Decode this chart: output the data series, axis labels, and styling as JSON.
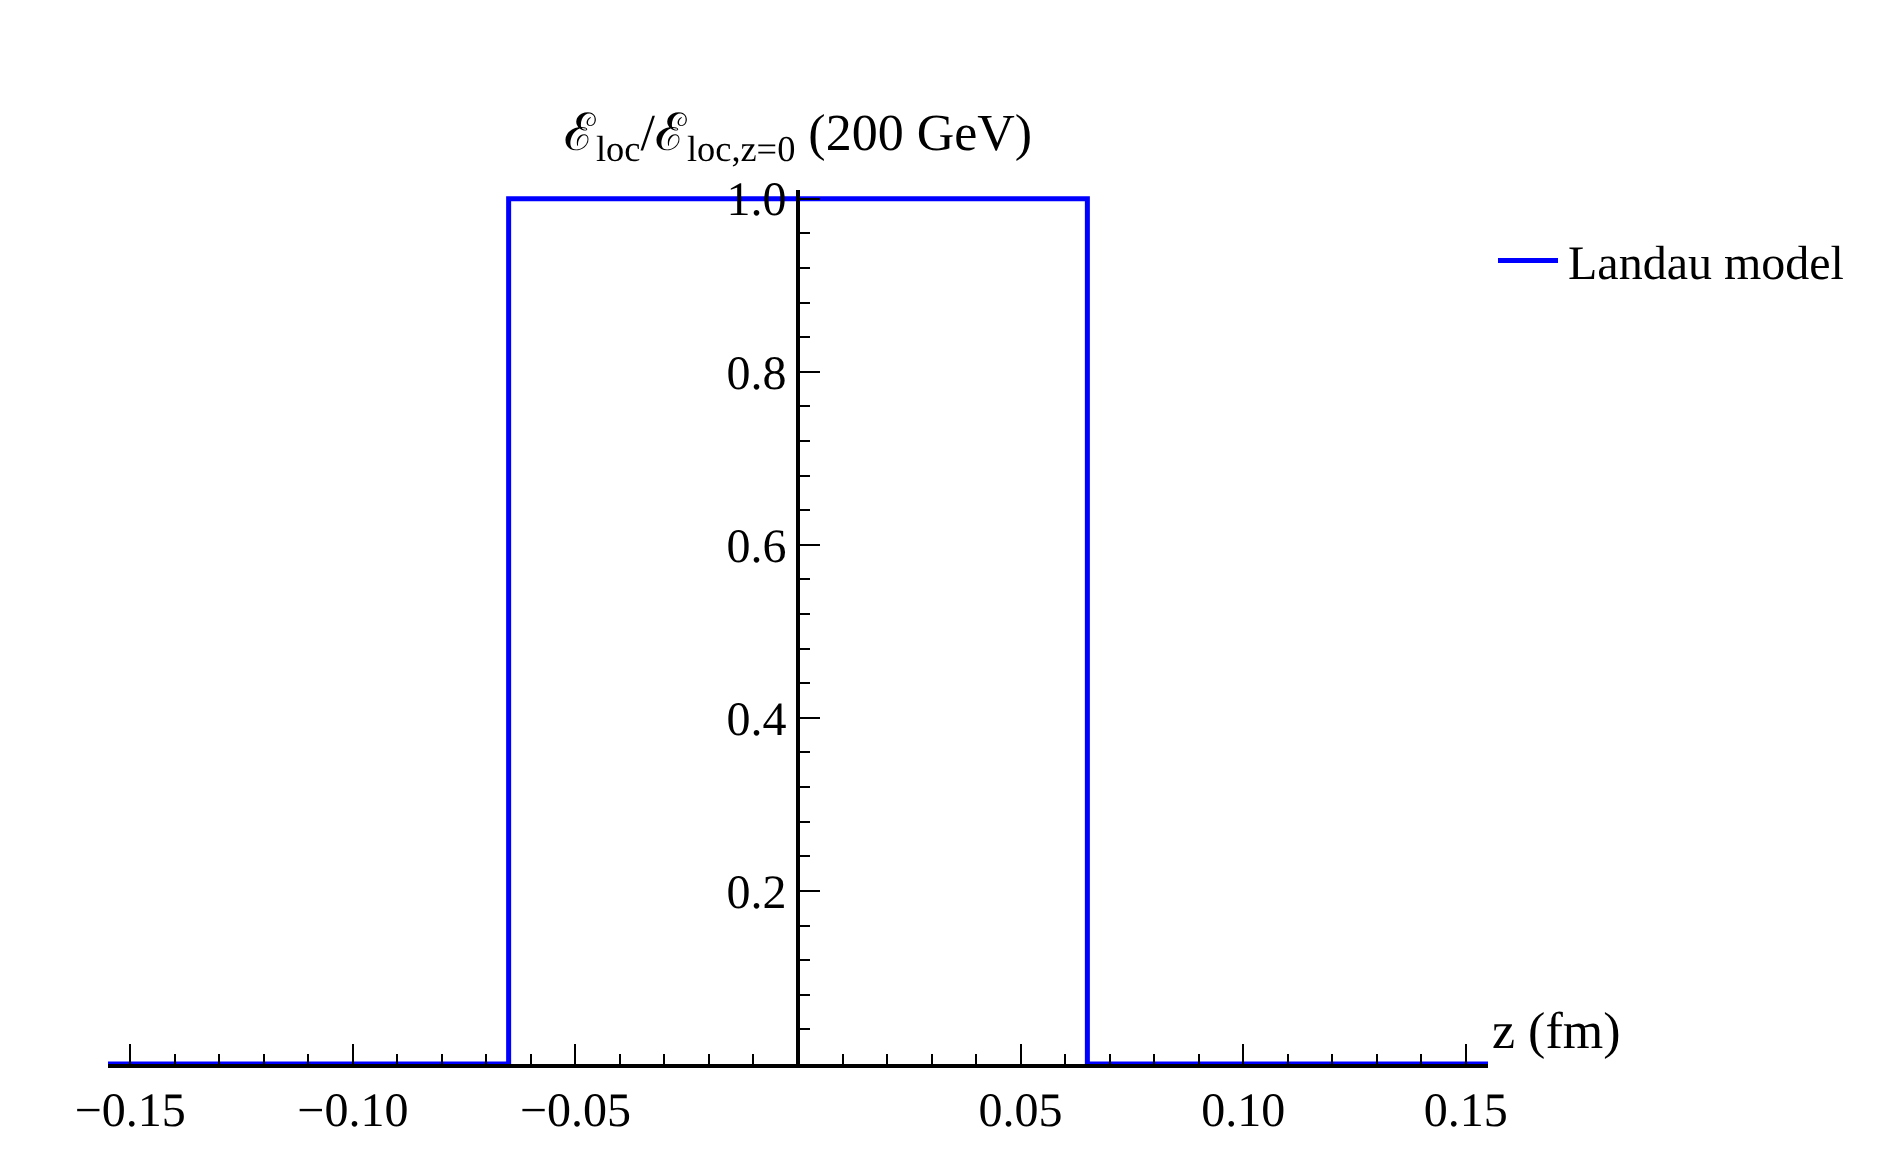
{
  "chart_data": {
    "type": "line",
    "xlabel": "z (fm)",
    "ylabel": "ℰ$_{loc}$/ℰ$_{loc,z=0}$ (200 GeV)",
    "x": [
      -0.155,
      -0.065,
      -0.065,
      0.065,
      0.065,
      0.155
    ],
    "series": [
      {
        "name": "Landau model",
        "color": "#0000ff",
        "values": [
          0,
          0,
          1,
          1,
          0,
          0
        ]
      }
    ],
    "xlim": [
      -0.155,
      0.155
    ],
    "ylim": [
      0,
      1.01
    ],
    "xticks": [
      {
        "value": -0.15,
        "label": "−0.15"
      },
      {
        "value": -0.1,
        "label": "−0.10"
      },
      {
        "value": -0.05,
        "label": "−0.05"
      },
      {
        "value": 0.05,
        "label": "0.05"
      },
      {
        "value": 0.1,
        "label": "0.10"
      },
      {
        "value": 0.15,
        "label": "0.15"
      }
    ],
    "yticks": [
      0.2,
      0.4,
      0.6,
      0.8,
      {
        "value": 1.0,
        "label": "1.0"
      }
    ],
    "legend": "top right",
    "marker": "none",
    "line_style": "solid"
  }
}
